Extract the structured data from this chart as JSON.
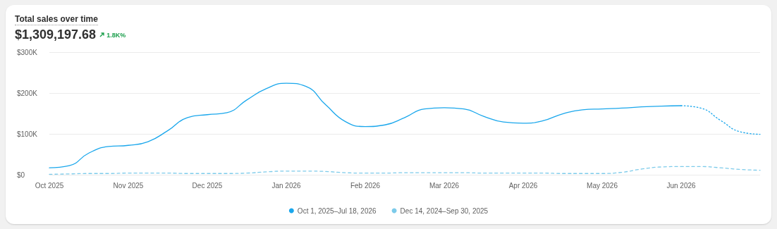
{
  "chart_data": {
    "type": "line",
    "title": "Total sales over time",
    "subtitle": "$1,309,197.68",
    "annotations": [
      "1.8K%"
    ],
    "categories": [
      "Oct 2025",
      null,
      null,
      null,
      "Nov 2025",
      null,
      null,
      null,
      "Dec 2025",
      null,
      null,
      null,
      "Jan 2026",
      null,
      null,
      null,
      "Feb 2026",
      null,
      null,
      null,
      "Mar 2026",
      null,
      null,
      null,
      "Apr 2026",
      null,
      null,
      null,
      "May 2026",
      null,
      null,
      null,
      "Jun 2026",
      null,
      null,
      null,
      null
    ],
    "series": [
      {
        "name": "Oct 1, 2025–Jul 18, 2026",
        "color": "#1aa7ec",
        "line_style": "solid",
        "values": [
          17000,
          22000,
          53000,
          69000,
          72000,
          81000,
          108000,
          140000,
          147000,
          152000,
          183000,
          211000,
          224000,
          216000,
          171000,
          130000,
          118000,
          122000,
          140000,
          161000,
          164000,
          161000,
          143000,
          129000,
          126000,
          132000,
          149000,
          159000,
          161000,
          163000,
          166000,
          168000,
          169000,
          null,
          null,
          null,
          null
        ]
      },
      {
        "color": "#1aa7ec",
        "line_style": "dotted",
        "values": [
          null,
          null,
          null,
          null,
          null,
          null,
          null,
          null,
          null,
          null,
          null,
          null,
          null,
          null,
          null,
          null,
          null,
          null,
          null,
          null,
          null,
          null,
          null,
          null,
          null,
          null,
          null,
          null,
          null,
          null,
          null,
          null,
          169000,
          163000,
          133000,
          105000,
          99000
        ]
      },
      {
        "name": "Dec 14, 2024–Sep 30, 2025",
        "color": "#7dcbea",
        "line_style": "dashed",
        "values": [
          1000,
          2000,
          3000,
          3000,
          4000,
          4000,
          4000,
          3000,
          3000,
          3000,
          4000,
          7000,
          9000,
          9000,
          8000,
          5000,
          4000,
          4000,
          5000,
          5000,
          5000,
          5000,
          4000,
          4000,
          4000,
          4000,
          3000,
          3000,
          3000,
          6000,
          14000,
          19000,
          20000,
          20000,
          17000,
          13000,
          11000
        ]
      }
    ],
    "ylim": [
      0,
      300000
    ],
    "yticks": [
      {
        "value": 0,
        "label": "$0"
      },
      {
        "value": 100000,
        "label": "$100K"
      },
      {
        "value": 200000,
        "label": "$200K"
      },
      {
        "value": 300000,
        "label": "$300K"
      }
    ],
    "grid": "y",
    "legend": "bottom",
    "marker": "none"
  }
}
